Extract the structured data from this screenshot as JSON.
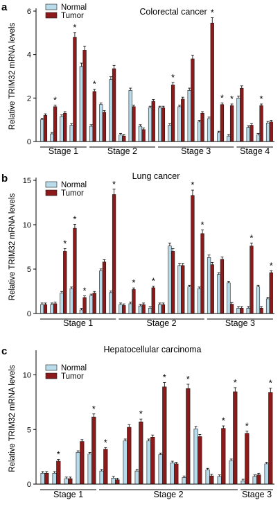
{
  "panels": [
    {
      "letter": "a",
      "legend": {
        "normal": "Normal",
        "tumor": "Tumor"
      },
      "chart_data": {
        "type": "bar",
        "title": "Colorectal cancer",
        "ylabel": "Relative TRIM32 mRNA levels",
        "xlabel": "",
        "ylim": [
          0,
          6
        ],
        "yticks": [
          0,
          2,
          4,
          6
        ],
        "legend_position": "top-left",
        "colors": {
          "normal": "#b9dcea",
          "tumor": "#8b1a1a"
        },
        "series": [
          {
            "name": "Normal",
            "values": [
              1.0,
              0.35,
              1.15,
              0.75,
              3.45,
              0.7,
              1.7,
              2.85,
              0.3,
              2.35,
              0.7,
              1.55,
              1.55,
              0.75,
              1.6,
              2.35,
              0.9,
              1.05,
              0.4,
              0.25,
              2.0,
              0.65,
              0.3,
              0.85
            ]
          },
          {
            "name": "Tumor",
            "values": [
              1.2,
              1.6,
              1.3,
              4.8,
              4.2,
              2.3,
              1.35,
              3.35,
              0.25,
              1.6,
              0.55,
              1.85,
              1.55,
              2.6,
              1.95,
              3.8,
              1.3,
              5.45,
              1.7,
              1.65,
              2.45,
              0.75,
              1.65,
              0.9
            ]
          }
        ],
        "significant": [
          false,
          true,
          false,
          true,
          false,
          true,
          false,
          false,
          false,
          false,
          false,
          false,
          false,
          true,
          false,
          false,
          false,
          true,
          true,
          true,
          false,
          false,
          true,
          false
        ],
        "significance_mark": "*",
        "groups": [
          {
            "label": "Stage 1",
            "start": 0,
            "end": 4
          },
          {
            "label": "Stage 2",
            "start": 5,
            "end": 11
          },
          {
            "label": "Stage 3",
            "start": 12,
            "end": 19
          },
          {
            "label": "Stage 4",
            "start": 20,
            "end": 23
          }
        ]
      }
    },
    {
      "letter": "b",
      "legend": {
        "normal": "Normal",
        "tumor": "Tumor"
      },
      "chart_data": {
        "type": "bar",
        "title": "Lung cancer",
        "ylabel": "Relative TRIM32 mRNA levels",
        "xlabel": "",
        "ylim": [
          0,
          15
        ],
        "yticks": [
          0,
          5,
          10,
          15
        ],
        "legend_position": "top-left",
        "colors": {
          "normal": "#b9dcea",
          "tumor": "#8b1a1a"
        },
        "series": [
          {
            "name": "Normal",
            "values": [
              1.0,
              1.0,
              2.3,
              2.8,
              0.4,
              2.0,
              4.8,
              2.35,
              1.0,
              1.1,
              0.85,
              0.6,
              1.0,
              7.6,
              5.4,
              3.0,
              2.8,
              6.3,
              4.4,
              3.45,
              0.6,
              0.6,
              3.0,
              1.65
            ]
          },
          {
            "name": "Tumor",
            "values": [
              1.0,
              1.1,
              7.0,
              9.6,
              1.8,
              2.3,
              5.8,
              13.4,
              0.9,
              2.7,
              1.0,
              2.9,
              1.0,
              7.0,
              5.4,
              13.3,
              9.0,
              5.5,
              6.1,
              1.05,
              0.6,
              7.6,
              0.6,
              4.6
            ]
          }
        ],
        "significant": [
          false,
          false,
          true,
          true,
          true,
          false,
          false,
          true,
          false,
          true,
          false,
          true,
          false,
          false,
          false,
          true,
          true,
          false,
          false,
          false,
          false,
          true,
          false,
          true
        ],
        "significance_mark": "*",
        "groups": [
          {
            "label": "Stage 1",
            "start": 0,
            "end": 7
          },
          {
            "label": "Stage 2",
            "start": 8,
            "end": 16
          },
          {
            "label": "Stage 3",
            "start": 17,
            "end": 23
          }
        ]
      }
    },
    {
      "letter": "c",
      "legend": {
        "normal": "Normal",
        "tumor": "Tumor"
      },
      "chart_data": {
        "type": "bar",
        "title": "Hepatocellular carcinoma",
        "ylabel": "Relative TRIM32 mRNA levels",
        "xlabel": "",
        "ylim": [
          0,
          12
        ],
        "yticks": [
          0,
          5,
          10
        ],
        "legend_position": "top-left",
        "colors": {
          "normal": "#b9dcea",
          "tumor": "#8b1a1a"
        },
        "series": [
          {
            "name": "Normal",
            "values": [
              1.0,
              1.0,
              0.5,
              2.9,
              2.75,
              1.2,
              0.55,
              3.95,
              1.2,
              3.95,
              2.7,
              1.95,
              0.6,
              5.05,
              1.3,
              0.7,
              2.15,
              0.3,
              0.7,
              1.85
            ]
          },
          {
            "name": "Tumor",
            "values": [
              1.0,
              2.1,
              0.5,
              3.9,
              6.15,
              3.2,
              0.4,
              5.2,
              5.7,
              4.3,
              8.9,
              1.85,
              8.75,
              4.35,
              0.75,
              5.1,
              8.45,
              4.65,
              0.85,
              8.4
            ]
          }
        ],
        "significant": [
          false,
          true,
          false,
          false,
          true,
          true,
          false,
          false,
          true,
          false,
          true,
          false,
          true,
          false,
          false,
          true,
          true,
          true,
          false,
          true
        ],
        "significance_mark": "*",
        "groups": [
          {
            "label": "Stage 1",
            "start": 0,
            "end": 4
          },
          {
            "label": "Stage 2",
            "start": 5,
            "end": 16
          },
          {
            "label": "Stage 3",
            "start": 17,
            "end": 19
          }
        ]
      }
    }
  ]
}
